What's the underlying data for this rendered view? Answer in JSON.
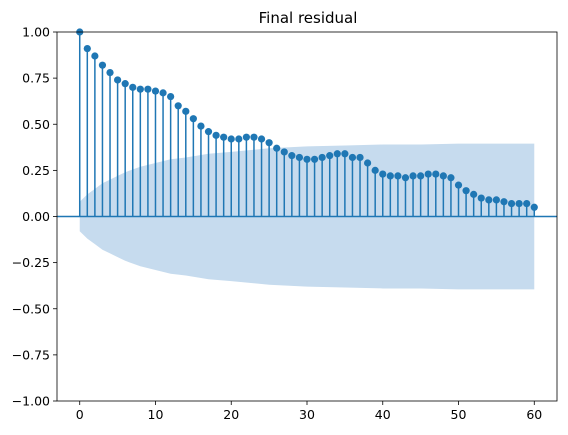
{
  "chart_data": {
    "type": "stem",
    "title": "Final residual",
    "xlabel": "",
    "ylabel": "",
    "xlim": [
      -3,
      63
    ],
    "ylim": [
      -1.0,
      1.0
    ],
    "xticks": [
      0,
      10,
      20,
      30,
      40,
      50,
      60
    ],
    "yticks": [
      -1.0,
      -0.75,
      -0.5,
      -0.25,
      0.0,
      0.25,
      0.5,
      0.75,
      1.0
    ],
    "ytick_labels": [
      "−1.00",
      "−0.75",
      "−0.50",
      "−0.25",
      "0.00",
      "0.25",
      "0.50",
      "0.75",
      "1.00"
    ],
    "grid": false,
    "colors": {
      "stem": "#1f77b4",
      "confidence_band": "#c6dbee",
      "axis": "#000000"
    },
    "lags": [
      0,
      1,
      2,
      3,
      4,
      5,
      6,
      7,
      8,
      9,
      10,
      11,
      12,
      13,
      14,
      15,
      16,
      17,
      18,
      19,
      20,
      21,
      22,
      23,
      24,
      25,
      26,
      27,
      28,
      29,
      30,
      31,
      32,
      33,
      34,
      35,
      36,
      37,
      38,
      39,
      40,
      41,
      42,
      43,
      44,
      45,
      46,
      47,
      48,
      49,
      50,
      51,
      52,
      53,
      54,
      55,
      56,
      57,
      58,
      59,
      60
    ],
    "values": [
      1.0,
      0.91,
      0.87,
      0.82,
      0.78,
      0.74,
      0.72,
      0.7,
      0.69,
      0.69,
      0.68,
      0.67,
      0.65,
      0.6,
      0.57,
      0.53,
      0.49,
      0.46,
      0.44,
      0.43,
      0.42,
      0.42,
      0.43,
      0.43,
      0.42,
      0.4,
      0.37,
      0.35,
      0.33,
      0.32,
      0.31,
      0.31,
      0.32,
      0.33,
      0.34,
      0.34,
      0.32,
      0.32,
      0.29,
      0.25,
      0.23,
      0.22,
      0.22,
      0.21,
      0.22,
      0.22,
      0.23,
      0.23,
      0.22,
      0.21,
      0.17,
      0.14,
      0.12,
      0.1,
      0.09,
      0.09,
      0.08,
      0.07,
      0.07,
      0.07,
      0.05
    ],
    "confidence_band": {
      "lags": [
        0,
        1,
        2,
        3,
        4,
        5,
        6,
        8,
        10,
        12,
        14,
        17,
        20,
        25,
        30,
        35,
        40,
        45,
        50,
        55,
        60
      ],
      "upper": [
        0.08,
        0.12,
        0.15,
        0.18,
        0.2,
        0.22,
        0.24,
        0.27,
        0.29,
        0.31,
        0.32,
        0.34,
        0.35,
        0.37,
        0.38,
        0.385,
        0.39,
        0.39,
        0.395,
        0.395,
        0.395
      ],
      "lower": [
        -0.08,
        -0.12,
        -0.15,
        -0.18,
        -0.2,
        -0.22,
        -0.24,
        -0.27,
        -0.29,
        -0.31,
        -0.32,
        -0.34,
        -0.35,
        -0.37,
        -0.38,
        -0.385,
        -0.39,
        -0.39,
        -0.395,
        -0.395,
        -0.395
      ]
    }
  }
}
